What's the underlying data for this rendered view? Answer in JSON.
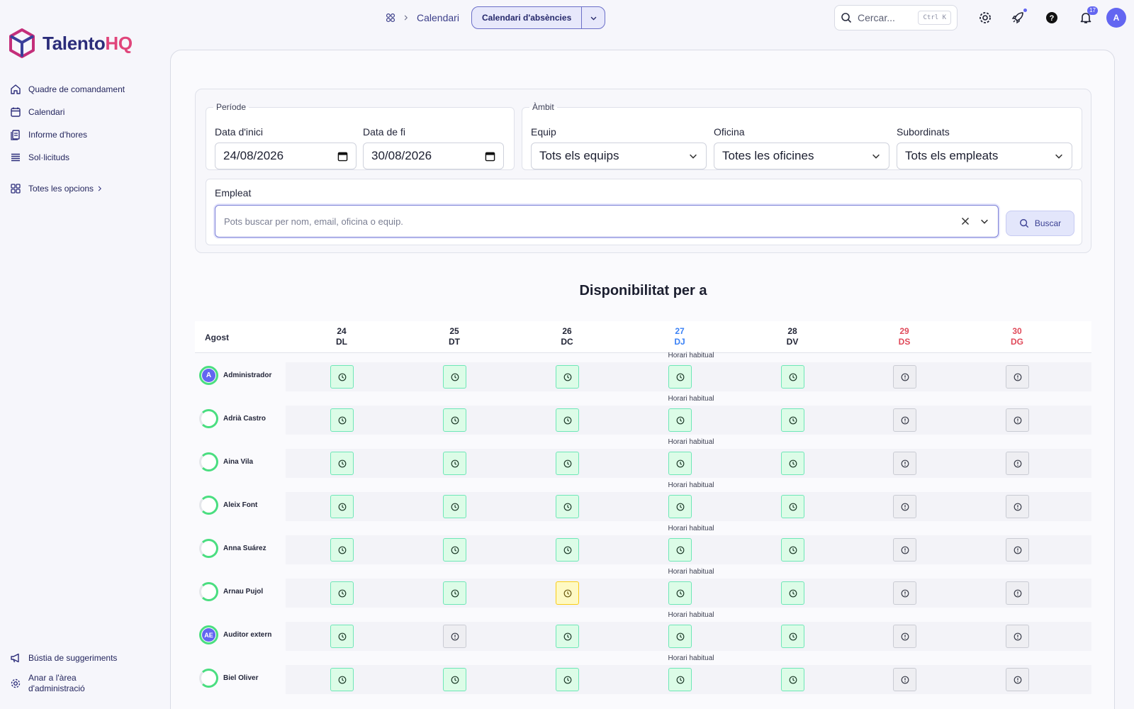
{
  "brand": {
    "name_main": "Talento",
    "name_accent": "HQ"
  },
  "sidebar": {
    "items": [
      {
        "label": "Quadre de comandament",
        "icon": "home-icon"
      },
      {
        "label": "Calendari",
        "icon": "calendar-icon"
      },
      {
        "label": "Informe d'hores",
        "icon": "report-icon"
      },
      {
        "label": "Sol·licituds",
        "icon": "list-icon"
      }
    ],
    "more": "Totes les opcions",
    "bottom": [
      {
        "label": "Bústia de suggeriments",
        "icon": "megaphone-icon"
      },
      {
        "label": "Anar a l'àrea d'administració",
        "icon": "gear-icon"
      }
    ]
  },
  "topbar": {
    "breadcrumb": "Calendari",
    "view_selector": "Calendari d'absències",
    "search_placeholder": "Cercar...",
    "search_shortcut": "Ctrl K",
    "notifications_count": "17",
    "avatar_initial": "A"
  },
  "filters": {
    "period_legend": "Període",
    "start_label": "Data d'inici",
    "start_value": "24/08/2026",
    "end_label": "Data de fi",
    "end_value": "30/08/2026",
    "scope_legend": "Àmbit",
    "team_label": "Equip",
    "team_value": "Tots els equips",
    "office_label": "Oficina",
    "office_value": "Totes les oficines",
    "subordinates_label": "Subordinats",
    "subordinates_value": "Tots els empleats",
    "employee_label": "Empleat",
    "employee_placeholder": "Pots buscar per nom, email, oficina o equip.",
    "search_button": "Buscar"
  },
  "availability": {
    "title": "Disponibilitat per a",
    "month": "Agost",
    "note": "Horari habitual",
    "days": [
      {
        "num": "24",
        "dow": "DL",
        "type": "normal"
      },
      {
        "num": "25",
        "dow": "DT",
        "type": "normal"
      },
      {
        "num": "26",
        "dow": "DC",
        "type": "normal"
      },
      {
        "num": "27",
        "dow": "DJ",
        "type": "today"
      },
      {
        "num": "28",
        "dow": "DV",
        "type": "normal"
      },
      {
        "num": "29",
        "dow": "DS",
        "type": "weekend"
      },
      {
        "num": "30",
        "dow": "DG",
        "type": "weekend"
      }
    ],
    "employees": [
      {
        "name": "Administrador",
        "initials": "A",
        "cells": [
          "work",
          "work",
          "work",
          "work",
          "work",
          "free",
          "free"
        ]
      },
      {
        "name": "Adrià Castro",
        "initials": "",
        "cells": [
          "work",
          "work",
          "work",
          "work",
          "work",
          "free",
          "free"
        ]
      },
      {
        "name": "Aina Vila",
        "initials": "",
        "cells": [
          "work",
          "work",
          "work",
          "work",
          "work",
          "free",
          "free"
        ]
      },
      {
        "name": "Aleix Font",
        "initials": "",
        "cells": [
          "work",
          "work",
          "work",
          "work",
          "work",
          "free",
          "free"
        ]
      },
      {
        "name": "Anna Suárez",
        "initials": "",
        "cells": [
          "work",
          "work",
          "work",
          "work",
          "work",
          "free",
          "free"
        ]
      },
      {
        "name": "Arnau Pujol",
        "initials": "",
        "cells": [
          "work",
          "work",
          "pending",
          "work",
          "work",
          "free",
          "free"
        ]
      },
      {
        "name": "Auditor extern",
        "initials": "AE",
        "cells": [
          "work",
          "free",
          "work",
          "work",
          "work",
          "free",
          "free"
        ]
      },
      {
        "name": "Biel Oliver",
        "initials": "",
        "cells": [
          "work",
          "work",
          "work",
          "work",
          "work",
          "free",
          "free"
        ]
      }
    ]
  }
}
